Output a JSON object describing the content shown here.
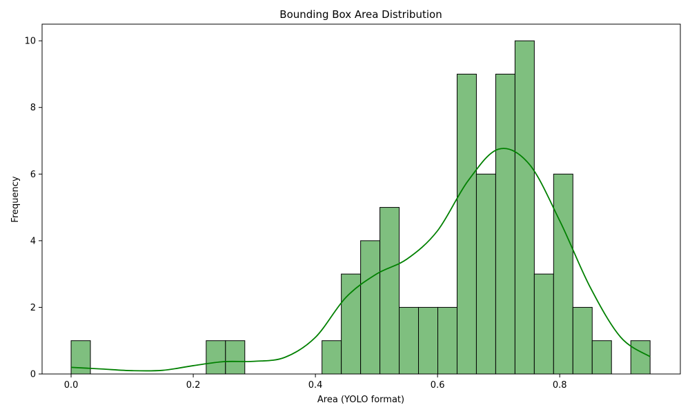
{
  "chart_data": {
    "type": "bar",
    "title": "Bounding Box Area Distribution",
    "xlabel": "Area (YOLO format)",
    "ylabel": "Frequency",
    "xlim": [
      -0.0475,
      0.9975
    ],
    "ylim": [
      0,
      10.5
    ],
    "xticks": [
      0.0,
      0.2,
      0.4,
      0.6,
      0.8
    ],
    "xtick_labels": [
      "0.0",
      "0.2",
      "0.4",
      "0.6",
      "0.8"
    ],
    "yticks": [
      0,
      2,
      4,
      6,
      8,
      10
    ],
    "ytick_labels": [
      "0",
      "2",
      "4",
      "6",
      "8",
      "10"
    ],
    "bin_width": 0.0316,
    "bins_start": [
      0.0,
      0.0316,
      0.0632,
      0.0948,
      0.1264,
      0.158,
      0.1896,
      0.2212,
      0.2528,
      0.2844,
      0.316,
      0.3476,
      0.3792,
      0.4108,
      0.4424,
      0.474,
      0.5056,
      0.5372,
      0.5688,
      0.6004,
      0.632,
      0.6636,
      0.6952,
      0.7268,
      0.7584,
      0.79,
      0.8216,
      0.8532,
      0.8848,
      0.9164
    ],
    "values": [
      1,
      0,
      0,
      0,
      0,
      0,
      0,
      1,
      1,
      0,
      0,
      0,
      0,
      1,
      3,
      4,
      5,
      2,
      2,
      2,
      9,
      6,
      9,
      10,
      3,
      6,
      2,
      1,
      0,
      1
    ],
    "bar_color": "#7fbf7f",
    "edge_color": "#000000",
    "kde": {
      "color": "#008000",
      "x": [
        0.0,
        0.05,
        0.1,
        0.15,
        0.2,
        0.25,
        0.3,
        0.35,
        0.4,
        0.45,
        0.5,
        0.55,
        0.6,
        0.65,
        0.7,
        0.75,
        0.8,
        0.85,
        0.9,
        0.948
      ],
      "y": [
        0.2,
        0.15,
        0.1,
        0.11,
        0.25,
        0.37,
        0.38,
        0.5,
        1.1,
        2.3,
        3.0,
        3.45,
        4.3,
        5.8,
        6.75,
        6.3,
        4.6,
        2.6,
        1.1,
        0.52
      ]
    },
    "grid": false,
    "legend": "none"
  }
}
